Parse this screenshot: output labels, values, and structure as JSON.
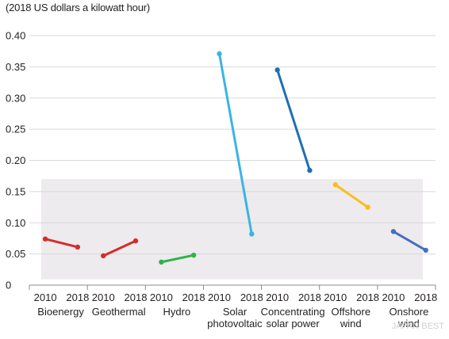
{
  "chart_data": {
    "type": "slope",
    "title": "(2018 US dollars a kilowatt hour)",
    "xlabel": "",
    "ylabel": "",
    "ylim": [
      0,
      0.4
    ],
    "y_ticks": [
      0,
      0.05,
      0.1,
      0.15,
      0.2,
      0.25,
      0.3,
      0.35,
      0.4
    ],
    "y_tick_labels": [
      "0",
      "0.05",
      "0.10",
      "0.15",
      "0.20",
      "0.25",
      "0.30",
      "0.35",
      "0.40"
    ],
    "years": [
      "2010",
      "2018"
    ],
    "grid": true,
    "band": {
      "from": 0.05,
      "to": 0.17
    },
    "categories": [
      {
        "name": "Bioenergy",
        "color": "#d62c2c",
        "values": [
          0.074,
          0.061
        ]
      },
      {
        "name": "Geothermal",
        "color": "#d62c2c",
        "values": [
          0.047,
          0.071
        ]
      },
      {
        "name": "Hydro",
        "color": "#2db34a",
        "values": [
          0.037,
          0.048
        ]
      },
      {
        "name": "Solar photovoltaic",
        "color": "#3ab4e6",
        "values": [
          0.371,
          0.082
        ]
      },
      {
        "name": "Concentrating solar power",
        "color": "#1f6fb4",
        "values": [
          0.345,
          0.184
        ]
      },
      {
        "name": "Offshore wind",
        "color": "#fbbd1e",
        "values": [
          0.161,
          0.125
        ]
      },
      {
        "name": "Onshore wind",
        "color": "#4670bd",
        "values": [
          0.086,
          0.056
        ]
      }
    ]
  },
  "watermark": "JAPAN BEST"
}
